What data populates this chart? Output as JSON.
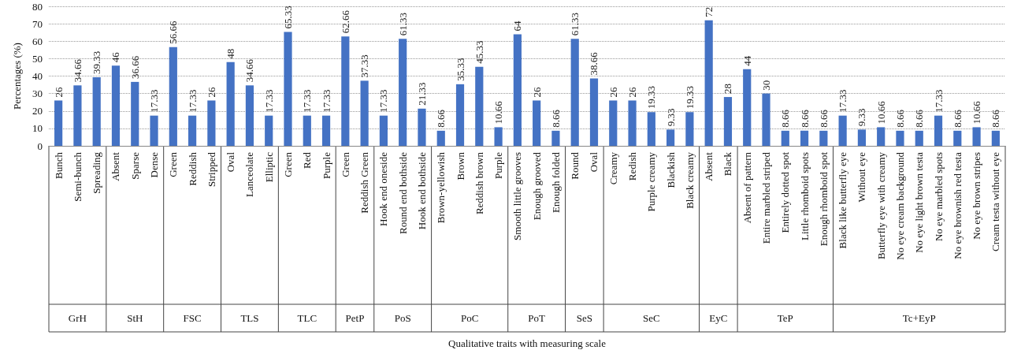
{
  "chart_data": {
    "type": "bar",
    "ylabel": "Percentages (%)",
    "categories": [
      "Bunch",
      "Semi-bunch",
      "Spreading",
      "Absent",
      "Sparse",
      "Dense",
      "Green",
      "Reddish",
      "Stripped",
      "Oval",
      "Lanceolate",
      "Elliptic",
      "Green",
      "Red",
      "Purple",
      "Green",
      "Reddish Green",
      "Hook end oneside",
      "Round end bothside",
      "Hook end bothside",
      "Brown-yellowish",
      "Brown",
      "Reddish brown",
      "Purple",
      "Smooth little grooves",
      "Enough grooved",
      "Enough folded",
      "Round",
      "Oval",
      "Creamy",
      "Redish",
      "Purple creamy",
      "Blackish",
      "Black creamy",
      "Absent",
      "Black",
      "Absent of pattern",
      "Entire marbled striped",
      "Entirely dotted spot",
      "Little rhomboid spots",
      "Enough rhomboid spot",
      "Black like butterfly eye",
      "Without eye",
      "Butterfly eye with creamy",
      "No eye cream background",
      "No eye light brown testa",
      "No eye marbled spots",
      "No eye brownish red testa",
      "No eye brown stripes",
      "Cream testa without eye"
    ],
    "values": [
      26,
      34.66,
      39.33,
      46,
      36.66,
      17.33,
      56.66,
      17.33,
      26,
      48,
      34.66,
      17.33,
      65.33,
      17.33,
      17.33,
      62.66,
      37.33,
      17.33,
      61.33,
      21.33,
      8.66,
      35.33,
      45.33,
      10.66,
      64,
      26,
      8.66,
      61.33,
      38.66,
      26,
      26,
      19.33,
      9.33,
      19.33,
      72,
      28,
      44,
      30,
      8.66,
      8.66,
      8.66,
      17.33,
      9.33,
      10.66,
      8.66,
      8.66,
      17.33,
      8.66,
      10.66,
      8.66
    ],
    "color": "#4472c4",
    "data_labels": true,
    "ylim": [
      0,
      80
    ],
    "yticks": [
      0,
      10,
      20,
      30,
      40,
      50,
      60,
      70,
      80
    ],
    "grid": "y",
    "annotations": [
      "GrH",
      "StH",
      "FSC",
      "TLS",
      "TLC",
      "PetP",
      "PoS",
      "PoC",
      "PoT",
      "SeS",
      "SeC",
      "EyC",
      "TeP",
      "Tc+EyP",
      "Qualitative traits with measuring scale"
    ]
  }
}
